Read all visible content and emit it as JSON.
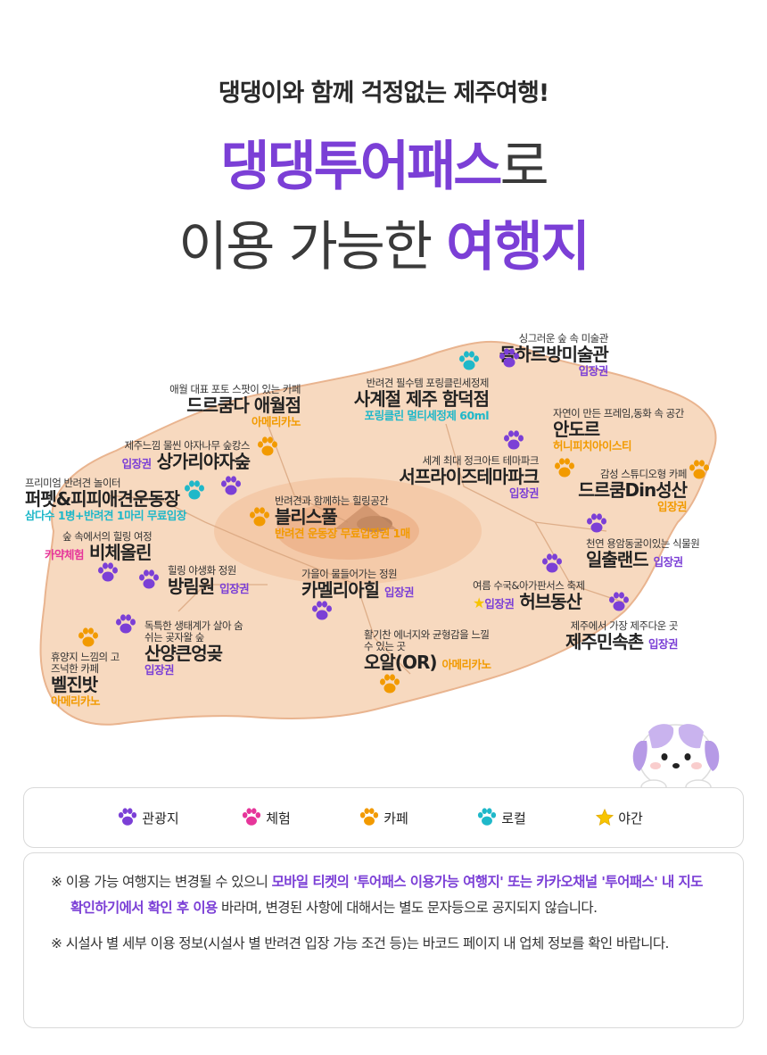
{
  "header": {
    "subtitle": "댕댕이와 함께 걱정없는 제주여행!",
    "title_highlight": "댕댕투어패스",
    "title_suffix": "로",
    "title2_plain": "이용 가능한 ",
    "title2_highlight": "여행지"
  },
  "colors": {
    "accent_purple": "#7b3fd6",
    "tour": "#7b3fd6",
    "experience": "#e6359a",
    "cafe": "#f29a00",
    "local": "#1fb8c9",
    "night": "#f7c400",
    "map_fill": "#f7d9bf"
  },
  "places": [
    {
      "desc": "싱그러운 숲 속 미술관",
      "name": "돌하르방미술관",
      "tag": "입장권",
      "category": "tour"
    },
    {
      "desc": "반려견 필수템 포링클린세정제",
      "name": "사계절 제주 함덕점",
      "tag": "포링클린 멀티세정제 60ml",
      "category": "local"
    },
    {
      "desc": "애월 대표 포토 스팟이 있는 카페",
      "name": "드르쿰다 애월점",
      "tag": "아메리카노",
      "category": "cafe"
    },
    {
      "desc": "자연이 만든 프레임,동화 속 공간",
      "name": "안도르",
      "tag": "허니피치아이스티",
      "category": "cafe"
    },
    {
      "desc": "제주느낌 물씬 야자나무 숲캉스",
      "name": "상가리야자숲",
      "tag": "입장권",
      "category": "tour"
    },
    {
      "desc": "세계 최대 정크아트 테마파크",
      "name": "서프라이즈테마파크",
      "tag": "입장권",
      "category": "tour"
    },
    {
      "desc": "감성 스튜디오형 카페",
      "name": "드르쿰Din성산",
      "tag": "입장권",
      "category": "cafe"
    },
    {
      "desc": "프리미엄 반려견 놀이터",
      "name": "퍼펫&피피애견운동장",
      "tag": "삼다수 1병+반려견 1마리 무료입장",
      "category": "local"
    },
    {
      "desc": "반려견과 함께하는 힐링공간",
      "name": "블리스풀",
      "tag": "반려견 운동장 무료입장권 1매",
      "category": "cafe"
    },
    {
      "desc": "숲 속에서의 힐링 여정",
      "name": "비체올린",
      "tag": "카약체험",
      "category": "tour"
    },
    {
      "desc": "천연 용암동굴이있는 식물원",
      "name": "일출랜드",
      "tag": "입장권",
      "category": "tour"
    },
    {
      "desc": "힐링 야생화 정원",
      "name": "방림원",
      "tag": "입장권",
      "category": "tour"
    },
    {
      "desc": "가을이 물들어가는 정원",
      "name": "카멜리아힐",
      "tag": "입장권",
      "category": "tour"
    },
    {
      "desc": "여름 수국&아가판서스 축제",
      "name": "허브동산",
      "tag": "입장권",
      "category": "night"
    },
    {
      "desc": "독특한 생태계가 살아 숨 쉬는 곶자왈 숲",
      "name": "산양큰엉곶",
      "tag": "입장권",
      "category": "tour"
    },
    {
      "desc": "제주에서 가장 제주다운 곳",
      "name": "제주민속촌",
      "tag": "입장권",
      "category": "tour"
    },
    {
      "desc": "활기찬 에너지와 균형감을 느낄 수 있는 곳",
      "name": "오알(OR)",
      "tag": "아메리카노",
      "category": "cafe"
    },
    {
      "desc": "휴양지 느낌의 고즈넉한 카페",
      "name": "벨진밧",
      "tag": "아메리카노",
      "category": "cafe"
    }
  ],
  "legend": [
    {
      "icon": "paw-icon",
      "label": "관광지",
      "color": "#7b3fd6"
    },
    {
      "icon": "paw-icon",
      "label": "체험",
      "color": "#e6359a"
    },
    {
      "icon": "paw-icon",
      "label": "카페",
      "color": "#f29a00"
    },
    {
      "icon": "paw-icon",
      "label": "로컬",
      "color": "#1fb8c9"
    },
    {
      "icon": "star-icon",
      "label": "야간",
      "color": "#f7c400"
    }
  ],
  "notes": [
    {
      "prefix": "※ 이용 가능 여행지는 변경될 수 있으니 ",
      "highlight": "모바일 티켓의 '투어패스 이용가능 여행지' 또는 카카오채널 '투어패스' 내 지도 확인하기에서 확인 후 이용",
      "suffix": " 바라며, 변경된 사항에 대해서는 별도 문자등으로 공지되지 않습니다."
    },
    {
      "prefix": "※ 시설사 별 세부 이용 정보(시설사 별 반려견 입장 가능 조건 등)는 바코드 페이지 내 업체 정보를 확인 바랍니다.",
      "highlight": "",
      "suffix": ""
    }
  ]
}
